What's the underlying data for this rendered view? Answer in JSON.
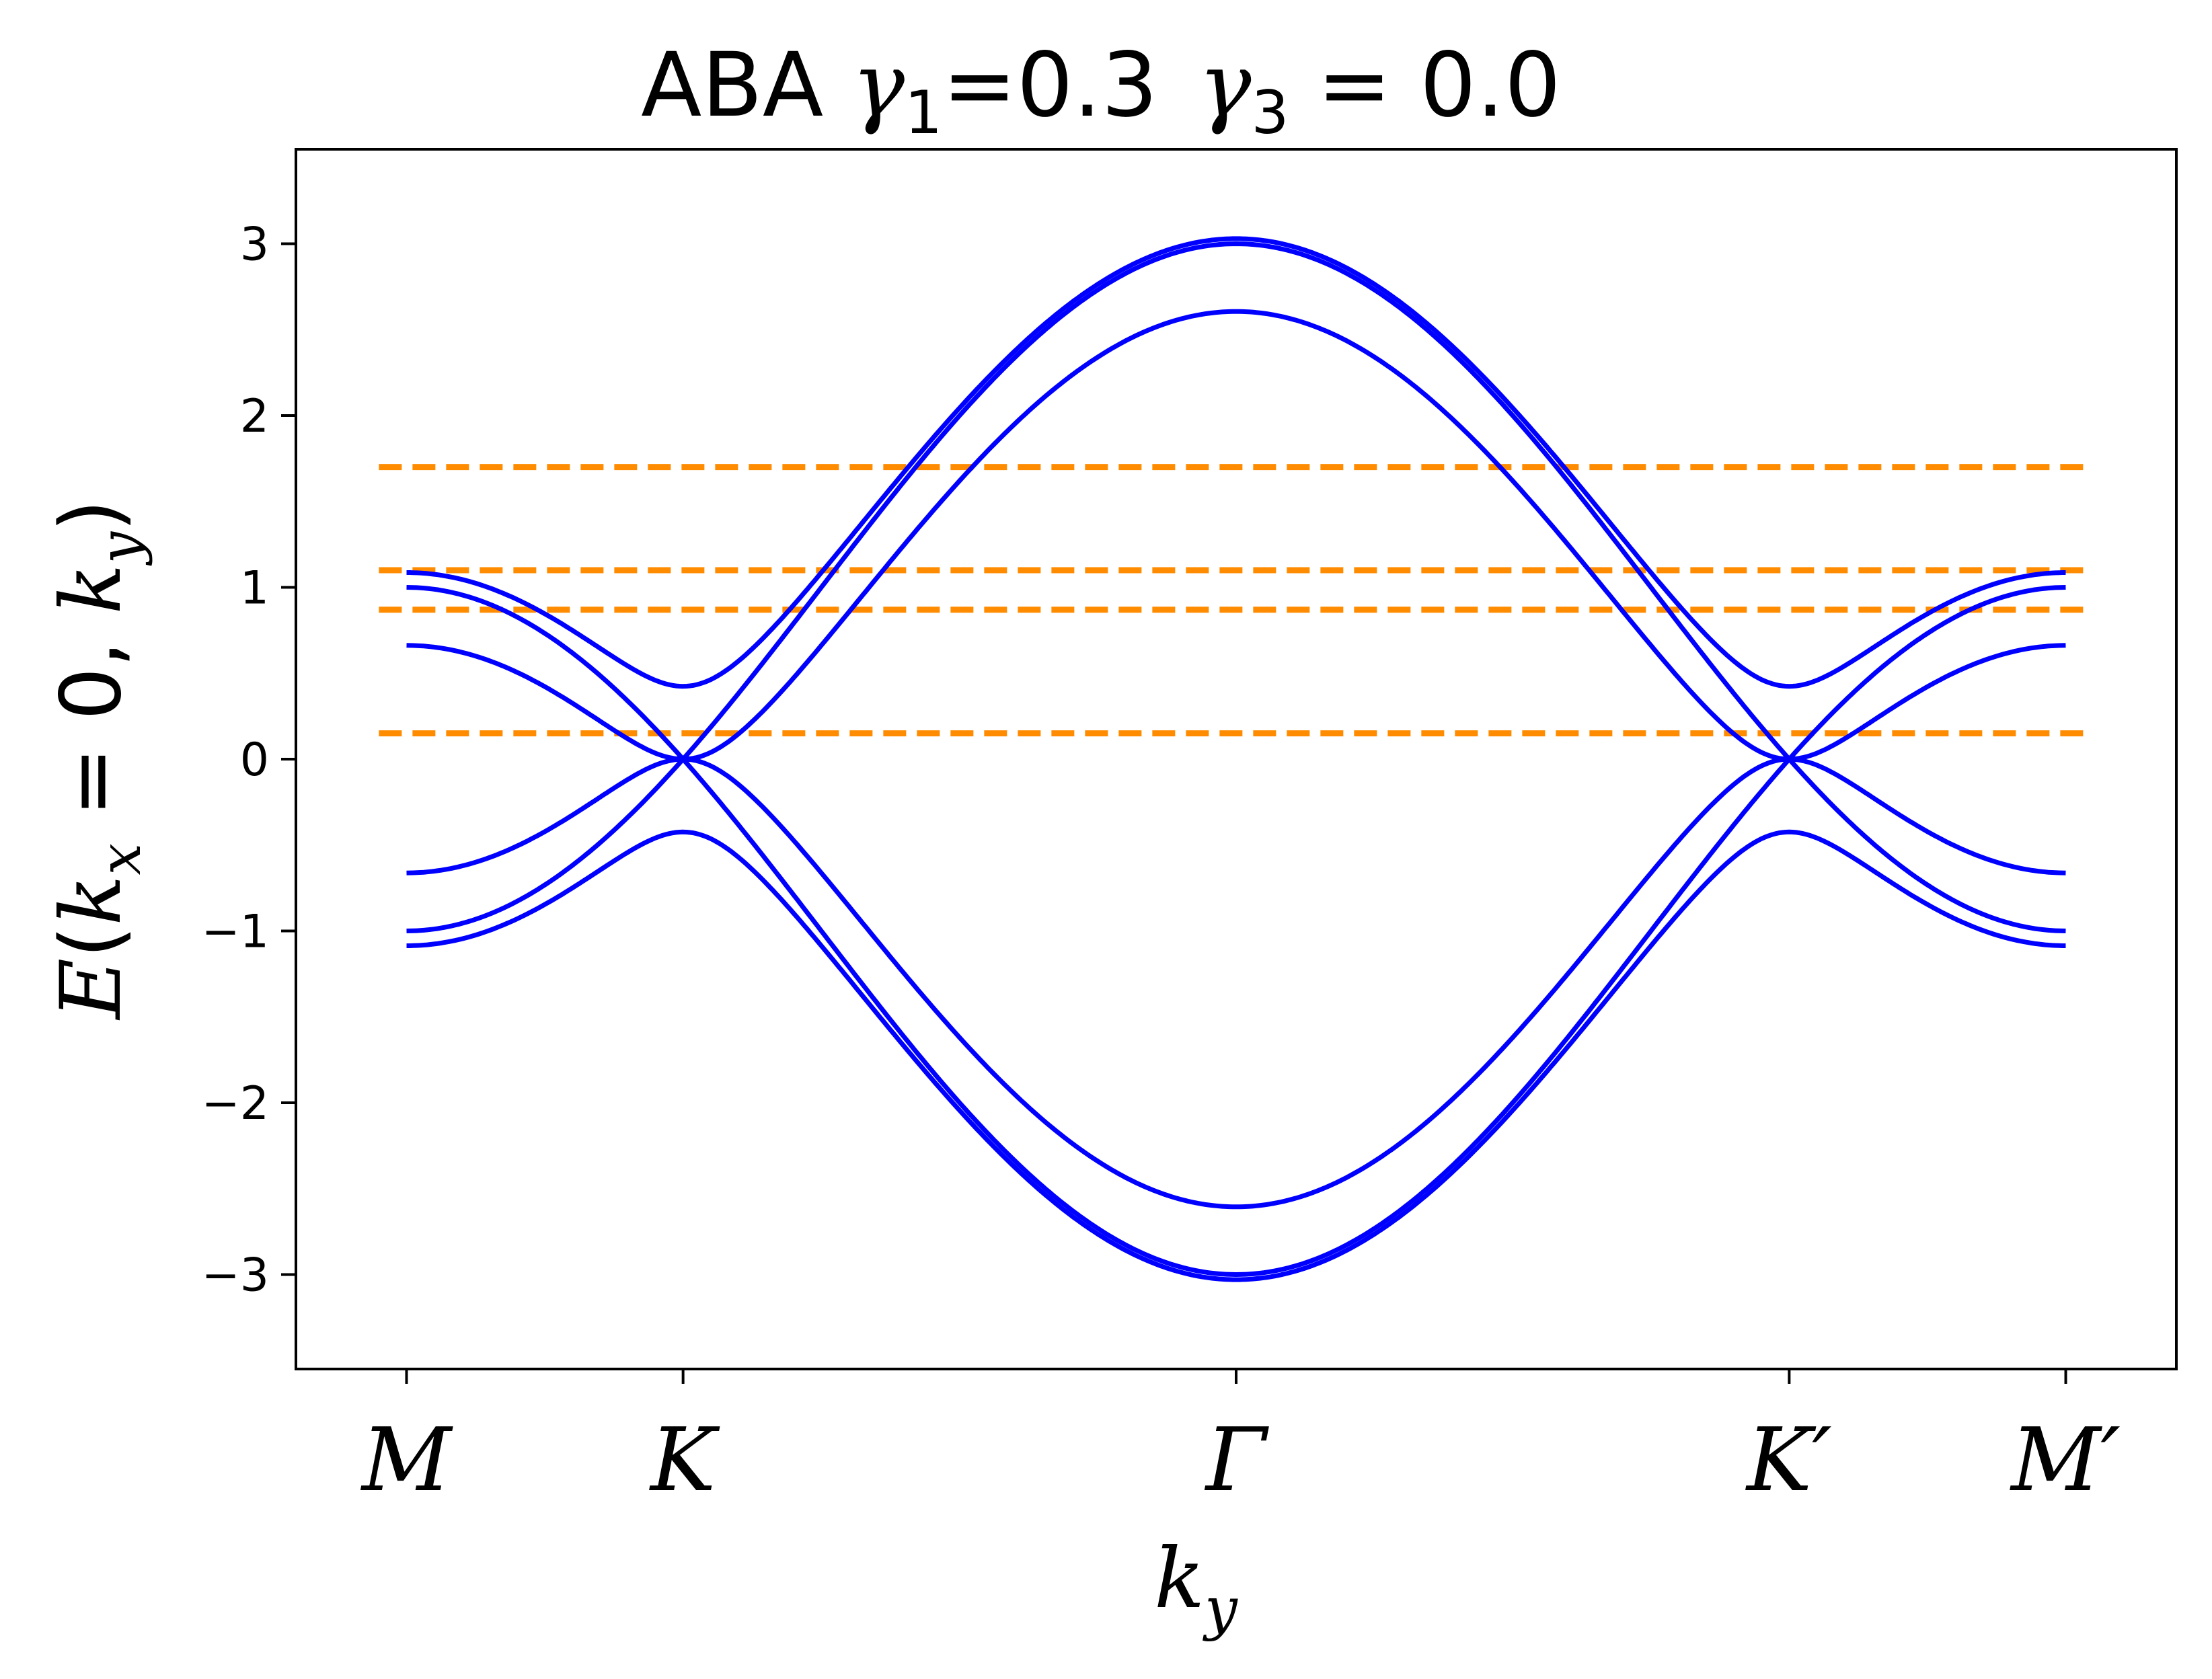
{
  "chart_data": {
    "type": "line",
    "title": {
      "prefix": "ABA ",
      "g1_symbol": "γ",
      "g1_sub": "1",
      "g1_text": "=0.3",
      "g3_symbol": "γ",
      "g3_sub": "3",
      "g3_text": " = 0.0"
    },
    "xlabel": {
      "base": "k",
      "sub": "y"
    },
    "ylabel": {
      "E": "E",
      "open": "(",
      "k1": "k",
      "sub1": "x",
      "eq": " = 0, ",
      "k2": "k",
      "sub2": "y",
      "close": ")"
    },
    "x_ticks": [
      {
        "label": "M",
        "pos": 0
      },
      {
        "label": "K",
        "pos": 1
      },
      {
        "label": "Γ",
        "pos": 3
      },
      {
        "label": "K′",
        "pos": 5
      },
      {
        "label": "M′",
        "pos": 6
      }
    ],
    "xlim": [
      -0.4,
      6.4
    ],
    "y_ticks": [
      {
        "label": "−3",
        "value": -3
      },
      {
        "label": "−2",
        "value": -2
      },
      {
        "label": "−1",
        "value": -1
      },
      {
        "label": "0",
        "value": 0
      },
      {
        "label": "1",
        "value": 1
      },
      {
        "label": "2",
        "value": 2
      },
      {
        "label": "3",
        "value": 3
      }
    ],
    "ylim": [
      -3.55,
      3.55
    ],
    "grid": false,
    "legend": "none",
    "band_model": {
      "description_of_path": "k_y path M-K-Gamma-K'-M' at k_x = 0",
      "x_range": [
        0,
        6
      ],
      "gamma1": 0.3,
      "gamma3": 0.0,
      "band_offsets": [
        -0.424,
        0,
        0.424
      ],
      "samples": 481
    },
    "series": [
      {
        "color": "#0000ff",
        "style": "solid"
      }
    ],
    "hlines": [
      {
        "value": 1.7,
        "color": "#ff8c00",
        "style": "dashed",
        "x_range": [
          -0.1,
          6.1
        ]
      },
      {
        "value": 1.1,
        "color": "#ff8c00",
        "style": "dashed",
        "x_range": [
          -0.1,
          6.1
        ]
      },
      {
        "value": 0.87,
        "color": "#ff8c00",
        "style": "dashed",
        "x_range": [
          -0.1,
          6.1
        ]
      },
      {
        "value": 0.15,
        "color": "#ff8c00",
        "style": "dashed",
        "x_range": [
          -0.1,
          6.1
        ]
      }
    ],
    "colors": {
      "bands": "#0000ff",
      "hlines": "#ff8c00",
      "axes": "#000000"
    }
  }
}
